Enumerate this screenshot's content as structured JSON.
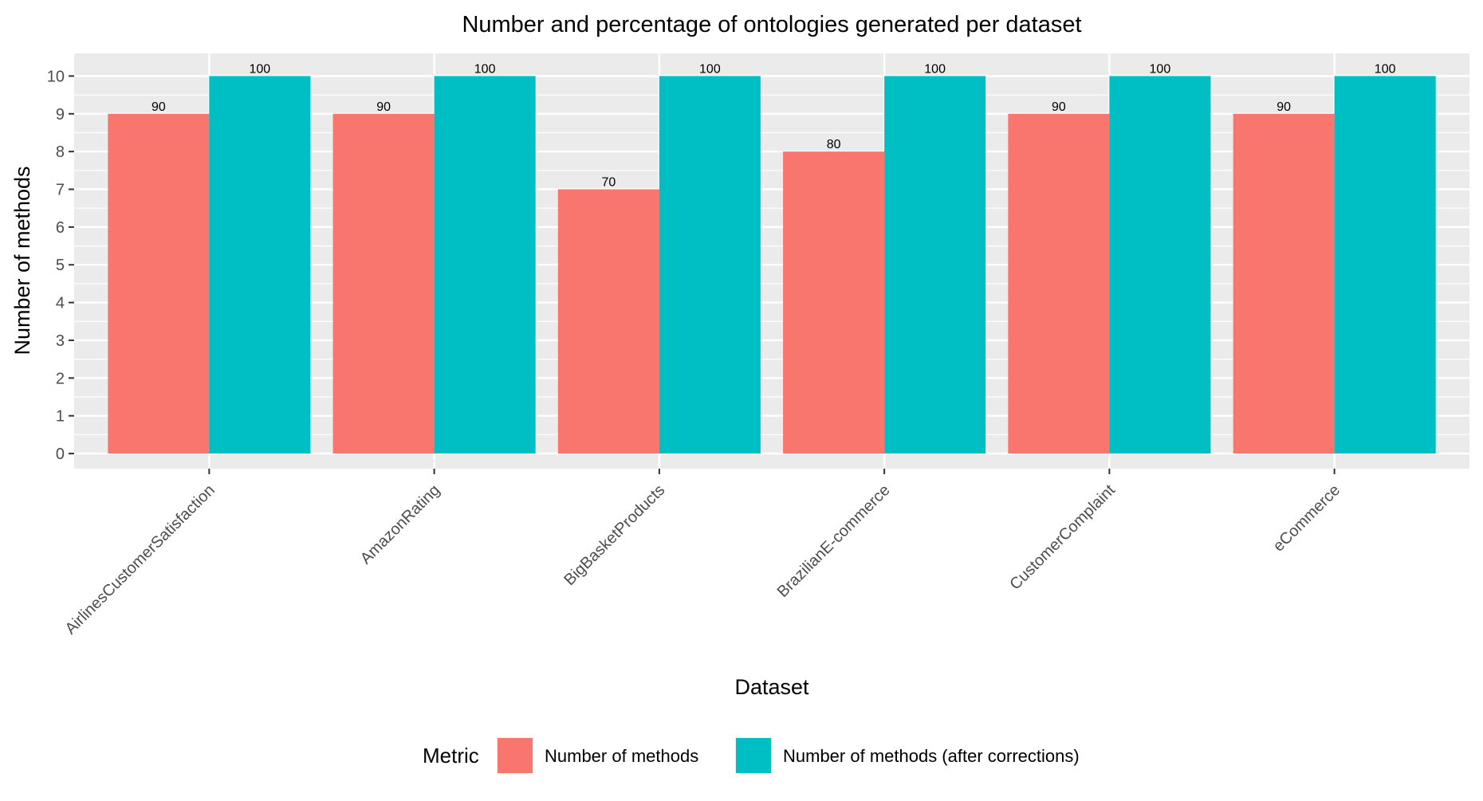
{
  "chart_data": {
    "type": "bar",
    "title": "Number and percentage of ontologies generated per dataset",
    "xlabel": "Dataset",
    "ylabel": "Number of methods",
    "categories": [
      "AirlinesCustomerSatisfaction",
      "AmazonRating",
      "BigBasketProducts",
      "BrazilianE-commerce",
      "CustomerComplaint",
      "eCommerce"
    ],
    "series": [
      {
        "name": "Number of methods",
        "color": "#F8766D",
        "values": [
          9,
          9,
          7,
          8,
          9,
          9
        ],
        "labels": [
          "90",
          "90",
          "70",
          "80",
          "90",
          "90"
        ]
      },
      {
        "name": "Number of methods (after corrections)",
        "color": "#00BFC4",
        "values": [
          10,
          10,
          10,
          10,
          10,
          10
        ],
        "labels": [
          "100",
          "100",
          "100",
          "100",
          "100",
          "100"
        ]
      }
    ],
    "ylim": [
      -0.4,
      10.6
    ],
    "yticks": [
      0,
      1,
      2,
      3,
      4,
      5,
      6,
      7,
      8,
      9,
      10
    ],
    "grid": true,
    "panel_background": "#EBEBEB",
    "legend": {
      "title": "Metric",
      "position": "bottom"
    }
  }
}
